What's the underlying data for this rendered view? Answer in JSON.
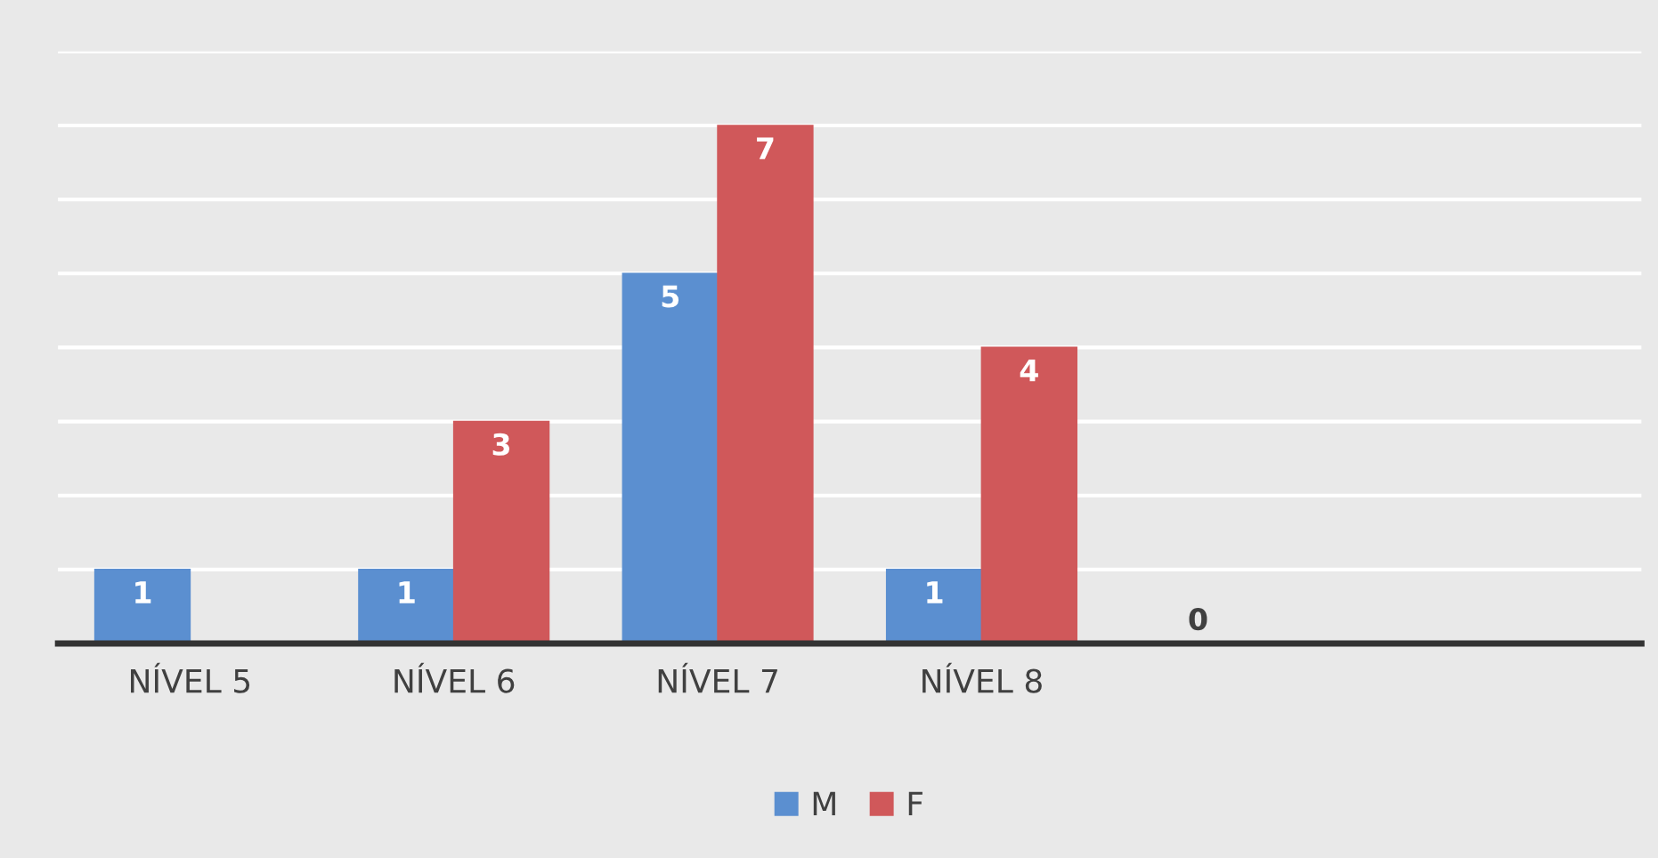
{
  "chart_data": {
    "type": "bar",
    "categories": [
      "NÍVEL 5",
      "NÍVEL 6",
      "NÍVEL 7",
      "NÍVEL 8",
      null,
      null
    ],
    "series": [
      {
        "name": "M",
        "color": "#5b8fd0",
        "values": [
          1,
          1,
          5,
          1,
          0,
          null
        ]
      },
      {
        "name": "F",
        "color": "#d0585a",
        "values": [
          null,
          3,
          7,
          4,
          null,
          null
        ]
      }
    ],
    "ylim": [
      0,
      8
    ],
    "yticks": [
      {
        "value": 0,
        "label": null
      },
      {
        "value": 1,
        "label": null
      },
      {
        "value": 2,
        "label": null
      },
      {
        "value": 3,
        "label": null
      },
      {
        "value": 4,
        "label": null
      },
      {
        "value": 5,
        "label": null
      },
      {
        "value": 6,
        "label": null
      },
      {
        "value": 7,
        "label": null
      },
      {
        "value": 8,
        "label": null
      }
    ],
    "grid": "y",
    "legend": "bottom",
    "data_labels": true,
    "tick_labels": "x"
  }
}
